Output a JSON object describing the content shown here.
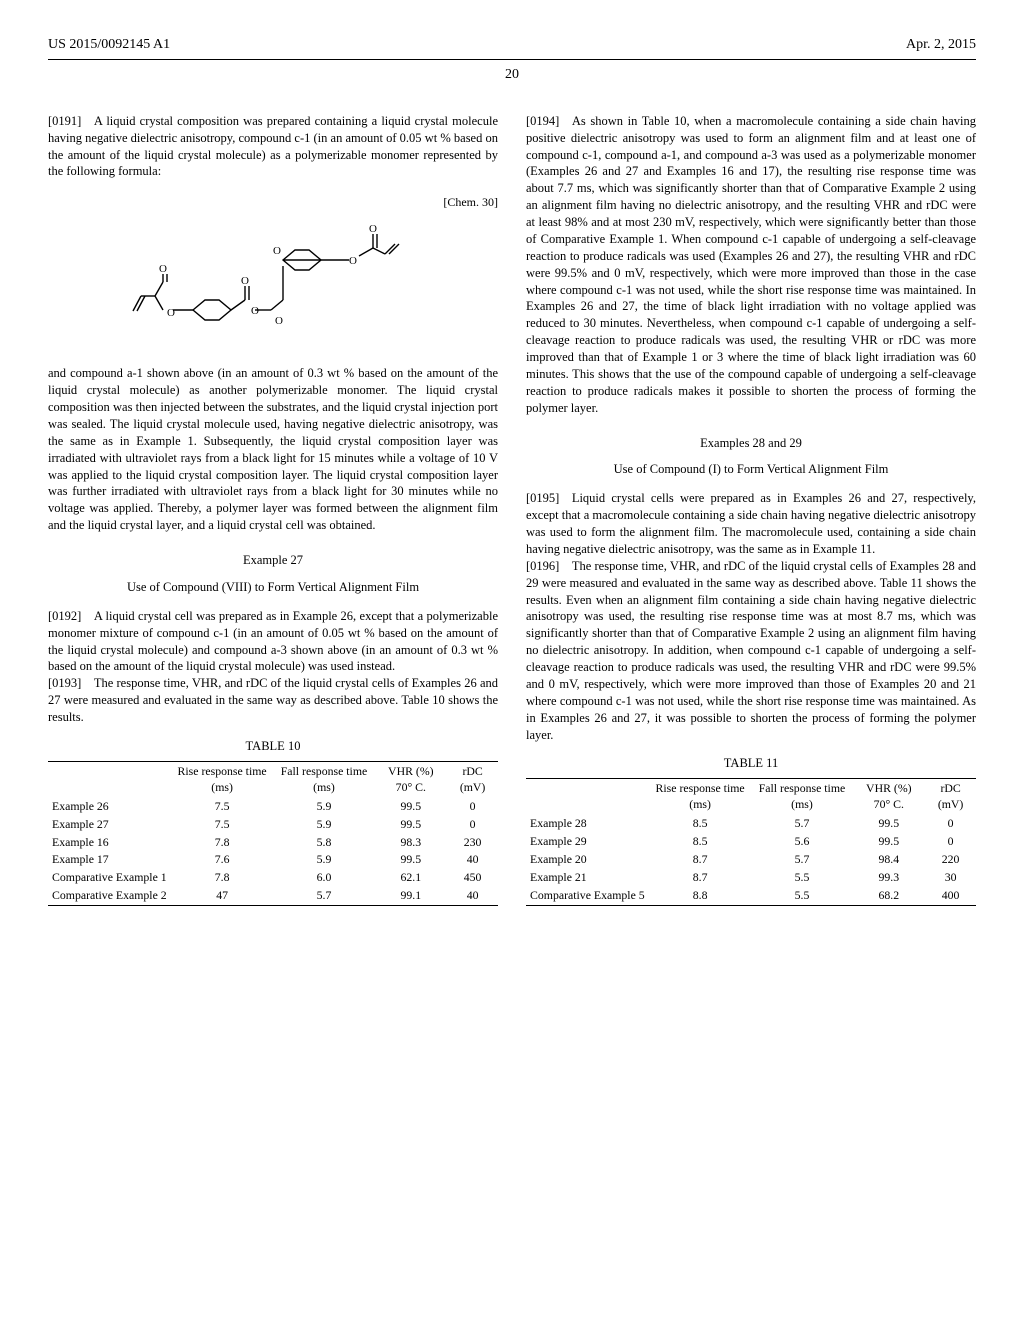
{
  "header": {
    "doc_number": "US 2015/0092145 A1",
    "date": "Apr. 2, 2015",
    "page": "20"
  },
  "chem": {
    "label": "[Chem. 30]"
  },
  "paragraphs": {
    "p0191_a": "[0191] A liquid crystal composition was prepared containing a liquid crystal molecule having negative dielectric anisotropy, compound c-1 (in an amount of 0.05 wt % based on the amount of the liquid crystal molecule) as a polymerizable monomer represented by the following formula:",
    "p0191_b": "and compound a-1 shown above (in an amount of 0.3 wt % based on the amount of the liquid crystal molecule) as another polymerizable monomer. The liquid crystal composition was then injected between the substrates, and the liquid crystal injection port was sealed. The liquid crystal molecule used, having negative dielectric anisotropy, was the same as in Example 1. Subsequently, the liquid crystal composition layer was irradiated with ultraviolet rays from a black light for 15 minutes while a voltage of 10 V was applied to the liquid crystal composition layer. The liquid crystal composition layer was further irradiated with ultraviolet rays from a black light for 30 minutes while no voltage was applied. Thereby, a polymer layer was formed between the alignment film and the liquid crystal layer, and a liquid crystal cell was obtained.",
    "ex27_title": "Example 27",
    "ex27_sub": "Use of Compound (VIII) to Form Vertical Alignment Film",
    "p0192": "[0192] A liquid crystal cell was prepared as in Example 26, except that a polymerizable monomer mixture of compound c-1 (in an amount of 0.05 wt % based on the amount of the liquid crystal molecule) and compound a-3 shown above (in an amount of 0.3 wt % based on the amount of the liquid crystal molecule) was used instead.",
    "p0193": "[0193] The response time, VHR, and rDC of the liquid crystal cells of Examples 26 and 27 were measured and evaluated in the same way as described above. Table 10 shows the results.",
    "p0194": "[0194] As shown in Table 10, when a macromolecule containing a side chain having positive dielectric anisotropy was used to form an alignment film and at least one of compound c-1, compound a-1, and compound a-3 was used as a polymerizable monomer (Examples 26 and 27 and Examples 16 and 17), the resulting rise response time was about 7.7 ms, which was significantly shorter than that of Comparative Example 2 using an alignment film having no dielectric anisotropy, and the resulting VHR and rDC were at least 98% and at most 230 mV, respectively, which were significantly better than those of Comparative Example 1. When compound c-1 capable of undergoing a self-cleavage reaction to produce radicals was used (Examples 26 and 27), the resulting VHR and rDC were 99.5% and 0 mV, respectively, which were more improved than those in the case where compound c-1 was not used, while the short rise response time was maintained. In Examples 26 and 27, the time of black light irradiation with no voltage applied was reduced to 30 minutes. Nevertheless, when compound c-1 capable of undergoing a self-cleavage reaction to produce radicals was used, the resulting VHR or rDC was more improved than that of Example 1 or 3 where the time of black light irradiation was 60 minutes. This shows that the use of the compound capable of undergoing a self-cleavage reaction to produce radicals makes it possible to shorten the process of forming the polymer layer.",
    "ex2829_title": "Examples 28 and 29",
    "ex2829_sub": "Use of Compound (I) to Form Vertical Alignment Film",
    "p0195": "[0195] Liquid crystal cells were prepared as in Examples 26 and 27, respectively, except that a macromolecule containing a side chain having negative dielectric anisotropy was used to form the alignment film. The macromolecule used, containing a side chain having negative dielectric anisotropy, was the same as in Example 11.",
    "p0196": "[0196] The response time, VHR, and rDC of the liquid crystal cells of Examples 28 and 29 were measured and evaluated in the same way as described above. Table 11 shows the results. Even when an alignment film containing a side chain having negative dielectric anisotropy was used, the resulting rise response time was at most 8.7 ms, which was significantly shorter than that of Comparative Example 2 using an alignment film having no dielectric anisotropy. In addition, when compound c-1 capable of undergoing a self-cleavage reaction to produce radicals was used, the resulting VHR and rDC were 99.5% and 0 mV, respectively, which were more improved than those of Examples 20 and 21 where compound c-1 was not used, while the short rise response time was maintained. As in Examples 26 and 27, it was possible to shorten the process of forming the polymer layer."
  },
  "table10": {
    "caption": "TABLE 10",
    "columns": [
      "",
      "Rise response time (ms)",
      "Fall response time (ms)",
      "VHR (%) 70° C.",
      "rDC (mV)"
    ],
    "rows": [
      [
        "Example 26",
        "7.5",
        "5.9",
        "99.5",
        "0"
      ],
      [
        "Example 27",
        "7.5",
        "5.9",
        "99.5",
        "0"
      ],
      [
        "Example 16",
        "7.8",
        "5.8",
        "98.3",
        "230"
      ],
      [
        "Example 17",
        "7.6",
        "5.9",
        "99.5",
        "40"
      ],
      [
        "Comparative Example 1",
        "7.8",
        "6.0",
        "62.1",
        "450"
      ],
      [
        "Comparative Example 2",
        "47",
        "5.7",
        "99.1",
        "40"
      ]
    ]
  },
  "table11": {
    "caption": "TABLE 11",
    "columns": [
      "",
      "Rise response time (ms)",
      "Fall response time (ms)",
      "VHR (%) 70° C.",
      "rDC (mV)"
    ],
    "rows": [
      [
        "Example 28",
        "8.5",
        "5.7",
        "99.5",
        "0"
      ],
      [
        "Example 29",
        "8.5",
        "5.6",
        "99.5",
        "0"
      ],
      [
        "Example 20",
        "8.7",
        "5.7",
        "98.4",
        "220"
      ],
      [
        "Example 21",
        "8.7",
        "5.5",
        "99.3",
        "30"
      ],
      [
        "Comparative Example 5",
        "8.8",
        "5.5",
        "68.2",
        "400"
      ]
    ]
  }
}
